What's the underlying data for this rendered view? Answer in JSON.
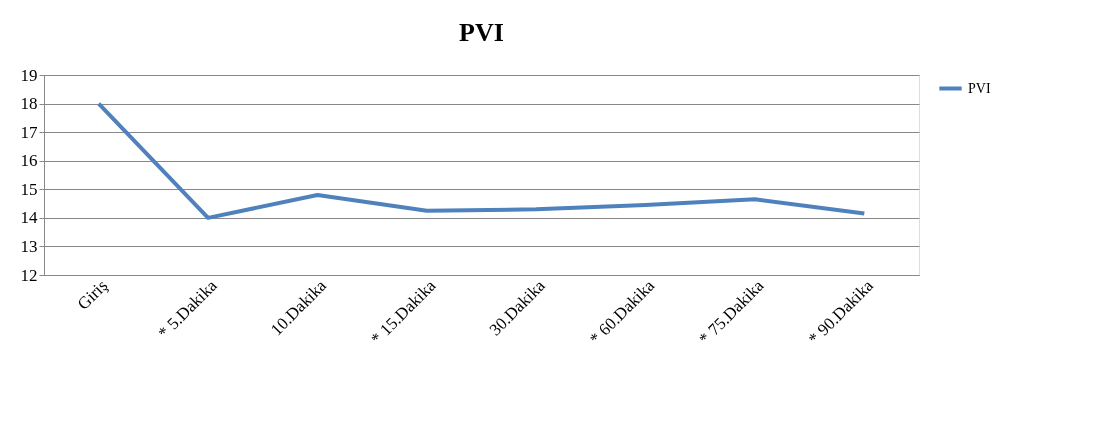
{
  "chart_data": {
    "type": "line",
    "title": "PVI",
    "categories": [
      "Giriş",
      "* 5.Dakika",
      "10.Dakika",
      "* 15.Dakika",
      "30.Dakika",
      "* 60.Dakika",
      "* 75.Dakika",
      "* 90.Dakika"
    ],
    "series": [
      {
        "name": "PVI",
        "color": "#4f81bd",
        "values": [
          18.0,
          14.0,
          14.8,
          14.25,
          14.3,
          14.45,
          14.65,
          14.15
        ]
      }
    ],
    "ylim": [
      12,
      19
    ],
    "yticks": [
      12,
      13,
      14,
      15,
      16,
      17,
      18,
      19
    ],
    "grid": "y",
    "legend": "right",
    "marker": "none",
    "line_style": "solid"
  }
}
